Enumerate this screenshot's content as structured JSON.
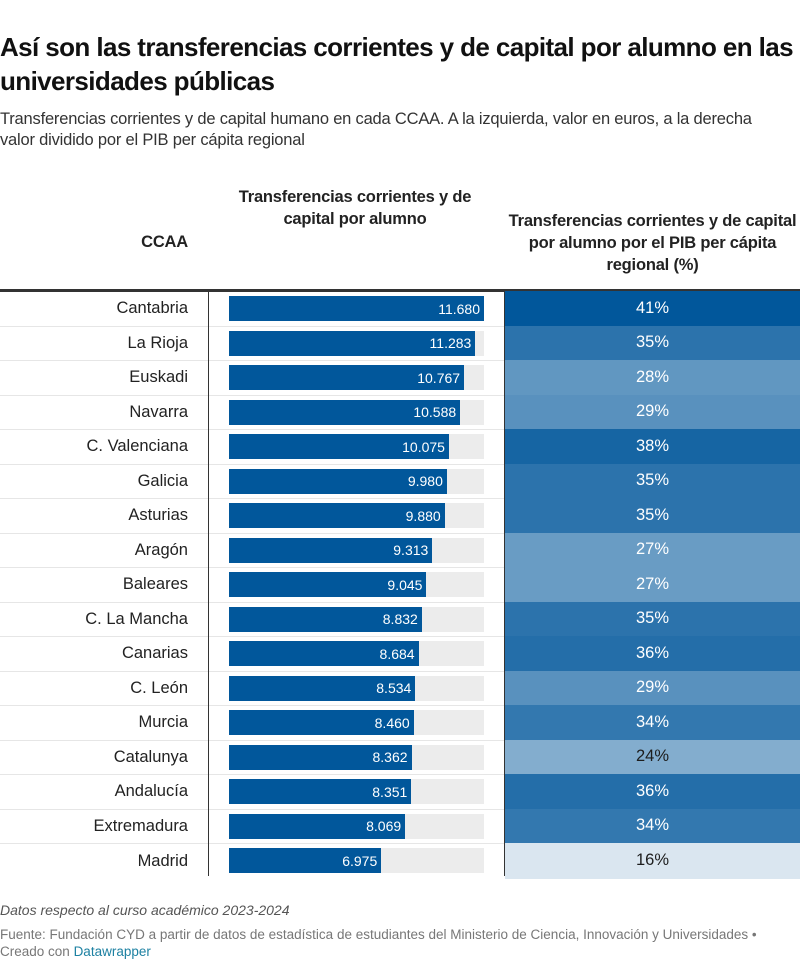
{
  "header": {
    "title": "Así son las transferencias corrientes y de capital por alumno en las universidades públicas",
    "subtitle": "Transferencias corrientes y de capital humano en cada CCAA. A la izquierda, valor en euros, a la derecha valor dividido por el PIB per cápita regional"
  },
  "columns": {
    "ccaa": "CCAA",
    "bar": "Transferencias corrientes y de capital por alumno",
    "pct": "Transferencias corrientes y de capital por alumno por el PIB per cápita regional (%)"
  },
  "colors": {
    "bar": "#01579b",
    "bar_track": "#ececec",
    "pct_scale_low": "#dae6f0",
    "pct_scale_high": "#01579b"
  },
  "chart_data": {
    "type": "table",
    "title": "Así son las transferencias corrientes y de capital por alumno en las universidades públicas",
    "columns": [
      "CCAA",
      "Transferencias corrientes y de capital por alumno",
      "Transferencias corrientes y de capital por alumno por el PIB per cápita regional (%)"
    ],
    "bar_max": 11680,
    "rows": [
      {
        "ccaa": "Cantabria",
        "value": 11680,
        "value_label": "11.680",
        "pct": 41,
        "pct_label": "41%"
      },
      {
        "ccaa": "La Rioja",
        "value": 11283,
        "value_label": "11.283",
        "pct": 35,
        "pct_label": "35%"
      },
      {
        "ccaa": "Euskadi",
        "value": 10767,
        "value_label": "10.767",
        "pct": 28,
        "pct_label": "28%"
      },
      {
        "ccaa": "Navarra",
        "value": 10588,
        "value_label": "10.588",
        "pct": 29,
        "pct_label": "29%"
      },
      {
        "ccaa": "C. Valenciana",
        "value": 10075,
        "value_label": "10.075",
        "pct": 38,
        "pct_label": "38%"
      },
      {
        "ccaa": "Galicia",
        "value": 9980,
        "value_label": "9.980",
        "pct": 35,
        "pct_label": "35%"
      },
      {
        "ccaa": "Asturias",
        "value": 9880,
        "value_label": "9.880",
        "pct": 35,
        "pct_label": "35%"
      },
      {
        "ccaa": "Aragón",
        "value": 9313,
        "value_label": "9.313",
        "pct": 27,
        "pct_label": "27%"
      },
      {
        "ccaa": "Baleares",
        "value": 9045,
        "value_label": "9.045",
        "pct": 27,
        "pct_label": "27%"
      },
      {
        "ccaa": "C. La Mancha",
        "value": 8832,
        "value_label": "8.832",
        "pct": 35,
        "pct_label": "35%"
      },
      {
        "ccaa": "Canarias",
        "value": 8684,
        "value_label": "8.684",
        "pct": 36,
        "pct_label": "36%"
      },
      {
        "ccaa": "C. León",
        "value": 8534,
        "value_label": "8.534",
        "pct": 29,
        "pct_label": "29%"
      },
      {
        "ccaa": "Murcia",
        "value": 8460,
        "value_label": "8.460",
        "pct": 34,
        "pct_label": "34%"
      },
      {
        "ccaa": "Catalunya",
        "value": 8362,
        "value_label": "8.362",
        "pct": 24,
        "pct_label": "24%"
      },
      {
        "ccaa": "Andalucía",
        "value": 8351,
        "value_label": "8.351",
        "pct": 36,
        "pct_label": "36%"
      },
      {
        "ccaa": "Extremadura",
        "value": 8069,
        "value_label": "8.069",
        "pct": 34,
        "pct_label": "34%"
      },
      {
        "ccaa": "Madrid",
        "value": 6975,
        "value_label": "6.975",
        "pct": 16,
        "pct_label": "16%"
      }
    ]
  },
  "footer": {
    "note": "Datos respecto al curso académico 2023-2024",
    "source": "Fuente: Fundación CYD a partir de datos de estadística de estudiantes del Ministerio de Ciencia, Innovación y Universidades •",
    "created_with": "Creado con",
    "created_link": "Datawrapper"
  }
}
